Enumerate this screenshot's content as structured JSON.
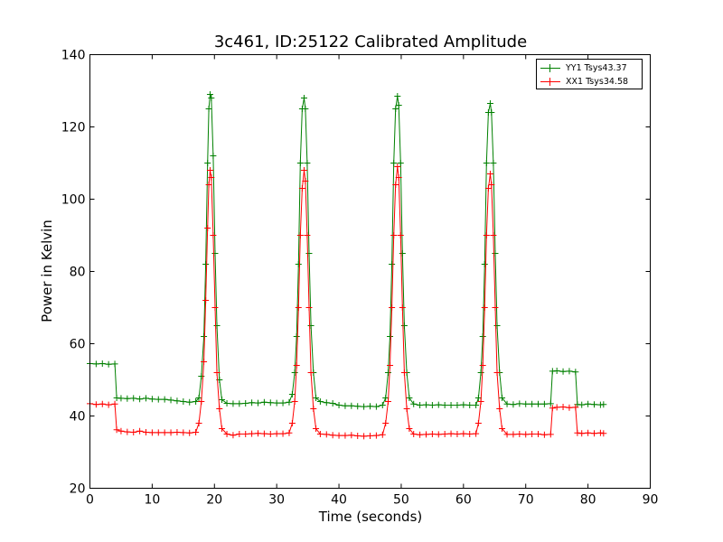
{
  "chart_data": {
    "type": "line",
    "title": "3c461, ID:25122 Calibrated Amplitude",
    "xlabel": "Time (seconds)",
    "ylabel": "Power in Kelvin",
    "xlim": [
      0,
      90
    ],
    "ylim": [
      20,
      140
    ],
    "xticks": [
      "0",
      "10",
      "20",
      "30",
      "40",
      "50",
      "60",
      "70",
      "80",
      "90"
    ],
    "yticks": [
      "20",
      "40",
      "60",
      "80",
      "100",
      "120",
      "140"
    ],
    "grid": false,
    "legend_position": "top-right",
    "marker": "+",
    "series": [
      {
        "name": "YY1 Tsys43.37",
        "color": "#008000",
        "points": [
          [
            0,
            54.5
          ],
          [
            1,
            54.4
          ],
          [
            2,
            54.5
          ],
          [
            3,
            54.3
          ],
          [
            4,
            54.4
          ],
          [
            4.3,
            45.0
          ],
          [
            5,
            44.9
          ],
          [
            6,
            44.8
          ],
          [
            7,
            44.9
          ],
          [
            8,
            44.7
          ],
          [
            9,
            44.9
          ],
          [
            10,
            44.7
          ],
          [
            11,
            44.6
          ],
          [
            12,
            44.6
          ],
          [
            13,
            44.4
          ],
          [
            14,
            44.2
          ],
          [
            15,
            44.0
          ],
          [
            16,
            43.8
          ],
          [
            17,
            44.0
          ],
          [
            17.5,
            45
          ],
          [
            17.9,
            51
          ],
          [
            18.3,
            62
          ],
          [
            18.6,
            82
          ],
          [
            18.9,
            110
          ],
          [
            19.1,
            125
          ],
          [
            19.3,
            129
          ],
          [
            19.5,
            128
          ],
          [
            19.8,
            112
          ],
          [
            20.1,
            85
          ],
          [
            20.4,
            65
          ],
          [
            20.8,
            50
          ],
          [
            21.2,
            44.5
          ],
          [
            22,
            43.5
          ],
          [
            23,
            43.4
          ],
          [
            24,
            43.4
          ],
          [
            25,
            43.5
          ],
          [
            26,
            43.7
          ],
          [
            27,
            43.6
          ],
          [
            28,
            43.8
          ],
          [
            29,
            43.7
          ],
          [
            30,
            43.6
          ],
          [
            31,
            43.6
          ],
          [
            32,
            43.8
          ],
          [
            32.5,
            46
          ],
          [
            32.9,
            52
          ],
          [
            33.2,
            62
          ],
          [
            33.5,
            82
          ],
          [
            33.8,
            110
          ],
          [
            34.1,
            125
          ],
          [
            34.4,
            128
          ],
          [
            34.6,
            125
          ],
          [
            34.9,
            110
          ],
          [
            35.2,
            85
          ],
          [
            35.5,
            65
          ],
          [
            35.9,
            52
          ],
          [
            36.3,
            45
          ],
          [
            37,
            44
          ],
          [
            38,
            43.7
          ],
          [
            39,
            43.5
          ],
          [
            40,
            43
          ],
          [
            41,
            42.8
          ],
          [
            42,
            42.8
          ],
          [
            43,
            42.7
          ],
          [
            44,
            42.6
          ],
          [
            45,
            42.7
          ],
          [
            46,
            42.6
          ],
          [
            47,
            43
          ],
          [
            47.5,
            45
          ],
          [
            47.9,
            52
          ],
          [
            48.2,
            62
          ],
          [
            48.5,
            82
          ],
          [
            48.8,
            110
          ],
          [
            49.1,
            125
          ],
          [
            49.4,
            128.5
          ],
          [
            49.6,
            126
          ],
          [
            49.9,
            110
          ],
          [
            50.2,
            85
          ],
          [
            50.5,
            65
          ],
          [
            50.9,
            52
          ],
          [
            51.3,
            45
          ],
          [
            52,
            43.3
          ],
          [
            53,
            43
          ],
          [
            54,
            43.1
          ],
          [
            55,
            43
          ],
          [
            56,
            43.1
          ],
          [
            57,
            43
          ],
          [
            58,
            43
          ],
          [
            59,
            43
          ],
          [
            60,
            43.1
          ],
          [
            61,
            43
          ],
          [
            62,
            43
          ],
          [
            62.4,
            45
          ],
          [
            62.8,
            52
          ],
          [
            63.1,
            62
          ],
          [
            63.4,
            82
          ],
          [
            63.7,
            110
          ],
          [
            64,
            124
          ],
          [
            64.3,
            126.5
          ],
          [
            64.5,
            124
          ],
          [
            64.8,
            110
          ],
          [
            65.1,
            85
          ],
          [
            65.4,
            65
          ],
          [
            65.8,
            52
          ],
          [
            66.2,
            45
          ],
          [
            67,
            43.3
          ],
          [
            68,
            43.2
          ],
          [
            69,
            43.4
          ],
          [
            70,
            43.3
          ],
          [
            71,
            43.3
          ],
          [
            72,
            43.3
          ],
          [
            73,
            43.3
          ],
          [
            74,
            43.4
          ],
          [
            74.3,
            52.4
          ],
          [
            75,
            52.5
          ],
          [
            76,
            52.3
          ],
          [
            77,
            52.4
          ],
          [
            78,
            52.2
          ],
          [
            78.3,
            43.2
          ],
          [
            79,
            43.1
          ],
          [
            80,
            43.3
          ],
          [
            81,
            43.2
          ],
          [
            82,
            43.1
          ],
          [
            82.5,
            43.2
          ]
        ]
      },
      {
        "name": "XX1 Tsys34.58",
        "color": "#ff0000",
        "points": [
          [
            0,
            43.4
          ],
          [
            1,
            43.2
          ],
          [
            2,
            43.3
          ],
          [
            3,
            43.1
          ],
          [
            4,
            43.3
          ],
          [
            4.3,
            36.2
          ],
          [
            5,
            35.8
          ],
          [
            6,
            35.6
          ],
          [
            7,
            35.5
          ],
          [
            8,
            35.8
          ],
          [
            9,
            35.5
          ],
          [
            10,
            35.4
          ],
          [
            11,
            35.4
          ],
          [
            12,
            35.4
          ],
          [
            13,
            35.4
          ],
          [
            14,
            35.5
          ],
          [
            15,
            35.4
          ],
          [
            16,
            35.3
          ],
          [
            17,
            35.5
          ],
          [
            17.5,
            38
          ],
          [
            17.9,
            44
          ],
          [
            18.3,
            55
          ],
          [
            18.6,
            72
          ],
          [
            18.9,
            92
          ],
          [
            19.1,
            104
          ],
          [
            19.3,
            108
          ],
          [
            19.5,
            106
          ],
          [
            19.8,
            90
          ],
          [
            20.1,
            70
          ],
          [
            20.4,
            52
          ],
          [
            20.8,
            42
          ],
          [
            21.2,
            36.5
          ],
          [
            22,
            35
          ],
          [
            23,
            34.7
          ],
          [
            24,
            35
          ],
          [
            25,
            35
          ],
          [
            26,
            35.1
          ],
          [
            27,
            35.2
          ],
          [
            28,
            35.1
          ],
          [
            29,
            35
          ],
          [
            30,
            35.1
          ],
          [
            31,
            35.1
          ],
          [
            32,
            35.3
          ],
          [
            32.5,
            38
          ],
          [
            32.9,
            44
          ],
          [
            33.2,
            54
          ],
          [
            33.5,
            70
          ],
          [
            33.8,
            90
          ],
          [
            34.1,
            103
          ],
          [
            34.4,
            108
          ],
          [
            34.6,
            105
          ],
          [
            34.9,
            90
          ],
          [
            35.2,
            70
          ],
          [
            35.5,
            52
          ],
          [
            35.9,
            42
          ],
          [
            36.3,
            36.5
          ],
          [
            37,
            35
          ],
          [
            38,
            34.9
          ],
          [
            39,
            34.7
          ],
          [
            40,
            34.6
          ],
          [
            41,
            34.6
          ],
          [
            42,
            34.7
          ],
          [
            43,
            34.5
          ],
          [
            44,
            34.4
          ],
          [
            45,
            34.5
          ],
          [
            46,
            34.6
          ],
          [
            47,
            34.8
          ],
          [
            47.5,
            38
          ],
          [
            47.9,
            44
          ],
          [
            48.2,
            54
          ],
          [
            48.5,
            70
          ],
          [
            48.8,
            90
          ],
          [
            49.1,
            104
          ],
          [
            49.4,
            109
          ],
          [
            49.6,
            106
          ],
          [
            49.9,
            90
          ],
          [
            50.2,
            70
          ],
          [
            50.5,
            52
          ],
          [
            50.9,
            42
          ],
          [
            51.3,
            36.5
          ],
          [
            52,
            35
          ],
          [
            53,
            34.8
          ],
          [
            54,
            34.9
          ],
          [
            55,
            35
          ],
          [
            56,
            34.9
          ],
          [
            57,
            35
          ],
          [
            58,
            35.1
          ],
          [
            59,
            35
          ],
          [
            60,
            35.1
          ],
          [
            61,
            35
          ],
          [
            62,
            35.1
          ],
          [
            62.4,
            38
          ],
          [
            62.8,
            44
          ],
          [
            63.1,
            54
          ],
          [
            63.4,
            70
          ],
          [
            63.7,
            90
          ],
          [
            64,
            103
          ],
          [
            64.3,
            107
          ],
          [
            64.5,
            104
          ],
          [
            64.8,
            90
          ],
          [
            65.1,
            70
          ],
          [
            65.4,
            52
          ],
          [
            65.8,
            42
          ],
          [
            66.2,
            36.5
          ],
          [
            67,
            34.9
          ],
          [
            68,
            34.9
          ],
          [
            69,
            35
          ],
          [
            70,
            34.9
          ],
          [
            71,
            35
          ],
          [
            72,
            35
          ],
          [
            73,
            34.8
          ],
          [
            74,
            34.9
          ],
          [
            74.3,
            42.2
          ],
          [
            75,
            42.4
          ],
          [
            76,
            42.5
          ],
          [
            77,
            42.3
          ],
          [
            78,
            42.4
          ],
          [
            78.3,
            35.3
          ],
          [
            79,
            35.2
          ],
          [
            80,
            35.3
          ],
          [
            81,
            35.2
          ],
          [
            82,
            35.3
          ],
          [
            82.5,
            35.2
          ]
        ]
      }
    ]
  }
}
